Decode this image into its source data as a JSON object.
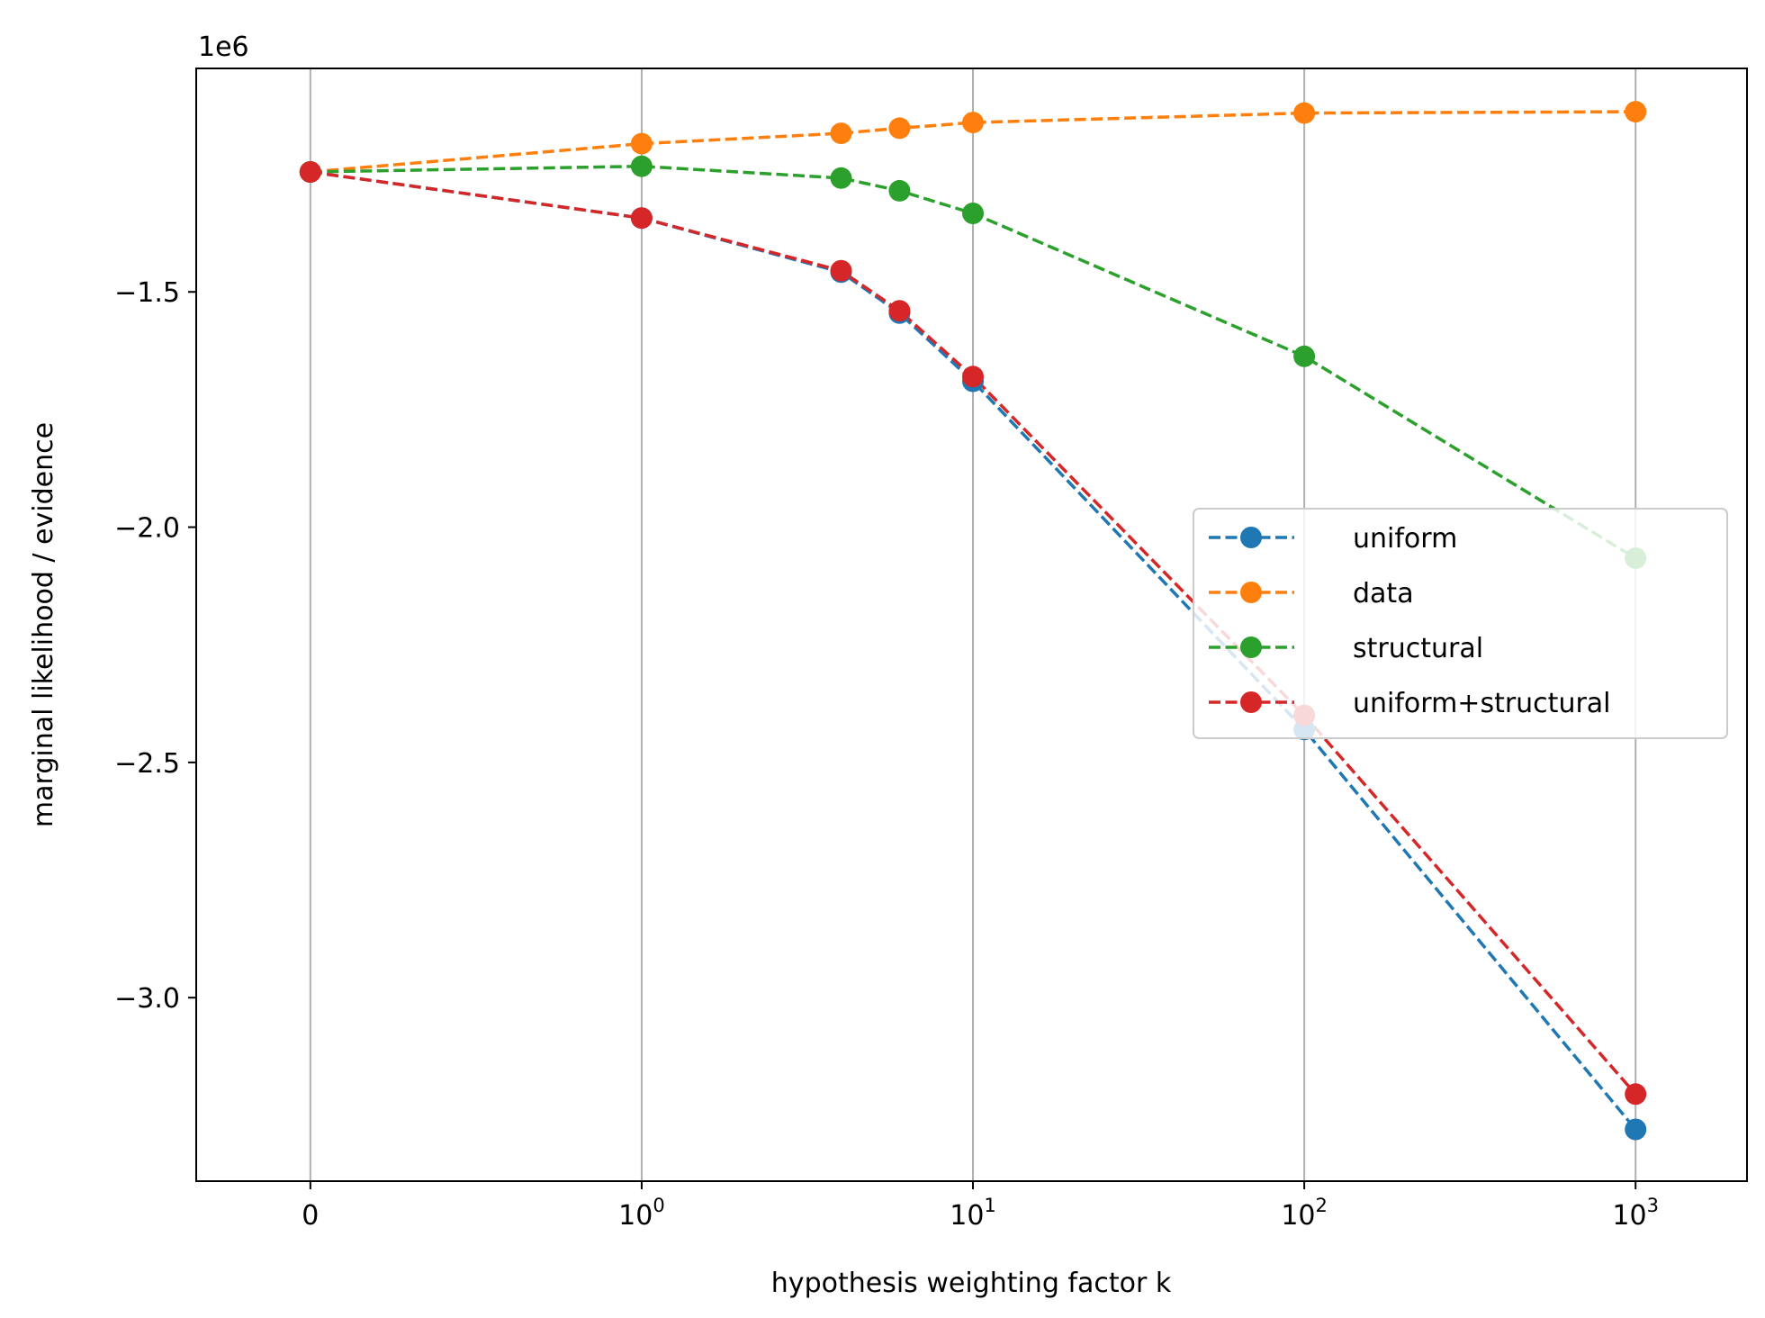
{
  "chart_data": {
    "type": "line",
    "title": "",
    "xlabel": "hypothesis weighting factor k",
    "ylabel": "marginal likelihood / evidence",
    "y_offset_label": "1e6",
    "x_scale": "symlog",
    "x_values": [
      0,
      1,
      4,
      6,
      10,
      100,
      1000
    ],
    "xticks": [
      {
        "value": 0,
        "base": "0",
        "exp": ""
      },
      {
        "value": 1,
        "base": "10",
        "exp": "0"
      },
      {
        "value": 10,
        "base": "10",
        "exp": "1"
      },
      {
        "value": 100,
        "base": "10",
        "exp": "2"
      },
      {
        "value": 1000,
        "base": "10",
        "exp": "3"
      }
    ],
    "yticks": [
      {
        "value": -1.5,
        "label": "−1.5"
      },
      {
        "value": -2.0,
        "label": "−2.0"
      },
      {
        "value": -2.5,
        "label": "−2.5"
      },
      {
        "value": -3.0,
        "label": "−3.0"
      }
    ],
    "ylim": [
      -3.39,
      -1.025
    ],
    "grid": "x",
    "legend_position": "center-right",
    "series": [
      {
        "name": "uniform",
        "color": "#1f77b4",
        "values": [
          -1.245,
          -1.343,
          -1.458,
          -1.545,
          -1.69,
          -2.43,
          -3.28
        ]
      },
      {
        "name": "data",
        "color": "#ff7f0e",
        "values": [
          -1.245,
          -1.185,
          -1.163,
          -1.152,
          -1.14,
          -1.12,
          -1.117
        ]
      },
      {
        "name": "structural",
        "color": "#2ca02c",
        "values": [
          -1.245,
          -1.233,
          -1.258,
          -1.285,
          -1.333,
          -1.637,
          -2.066
        ]
      },
      {
        "name": "uniform+structural",
        "color": "#d62728",
        "values": [
          -1.245,
          -1.343,
          -1.455,
          -1.54,
          -1.68,
          -2.4,
          -3.205
        ]
      }
    ]
  }
}
